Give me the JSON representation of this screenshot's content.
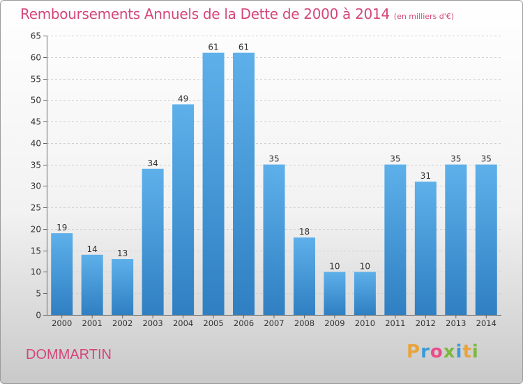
{
  "chart_data": {
    "type": "bar",
    "title": "Remboursements Annuels de la Dette de 2000 à 2014",
    "subtitle": "(en milliers d'€)",
    "categories": [
      "2000",
      "2001",
      "2002",
      "2003",
      "2004",
      "2005",
      "2006",
      "2007",
      "2008",
      "2009",
      "2010",
      "2011",
      "2012",
      "2013",
      "2014"
    ],
    "values": [
      19,
      14,
      13,
      34,
      49,
      61,
      61,
      35,
      18,
      10,
      10,
      35,
      31,
      35,
      35
    ],
    "ylim": [
      0,
      65
    ],
    "yticks": [
      0,
      5,
      10,
      15,
      20,
      25,
      30,
      35,
      40,
      45,
      50,
      55,
      60,
      65
    ],
    "xlabel": "",
    "ylabel": "",
    "grid": true,
    "bar_color": "#4a9fde"
  },
  "commune": "DOMMARTIN",
  "logo": {
    "letters": [
      "P",
      "r",
      "o",
      "x",
      "i",
      "t",
      "i"
    ],
    "colors": [
      "#e8a43a",
      "#3a9ad9",
      "#e84d8a",
      "#7cb83d",
      "#3a9ad9",
      "#e8a43a",
      "#7cb83d"
    ]
  }
}
